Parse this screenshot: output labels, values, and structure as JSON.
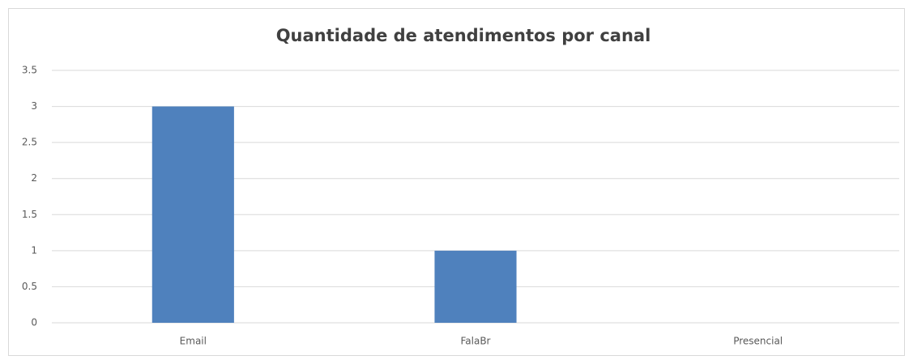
{
  "chart_data": {
    "type": "bar",
    "title": "Quantidade de atendimentos por canal",
    "categories": [
      "Email",
      "FalaBr",
      "Presencial"
    ],
    "values": [
      3,
      1,
      0
    ],
    "color": "#4f81bd",
    "ylim": [
      0,
      3.5
    ],
    "yticks": [
      0,
      0.5,
      1,
      1.5,
      2,
      2.5,
      3,
      3.5
    ],
    "grid": true
  }
}
